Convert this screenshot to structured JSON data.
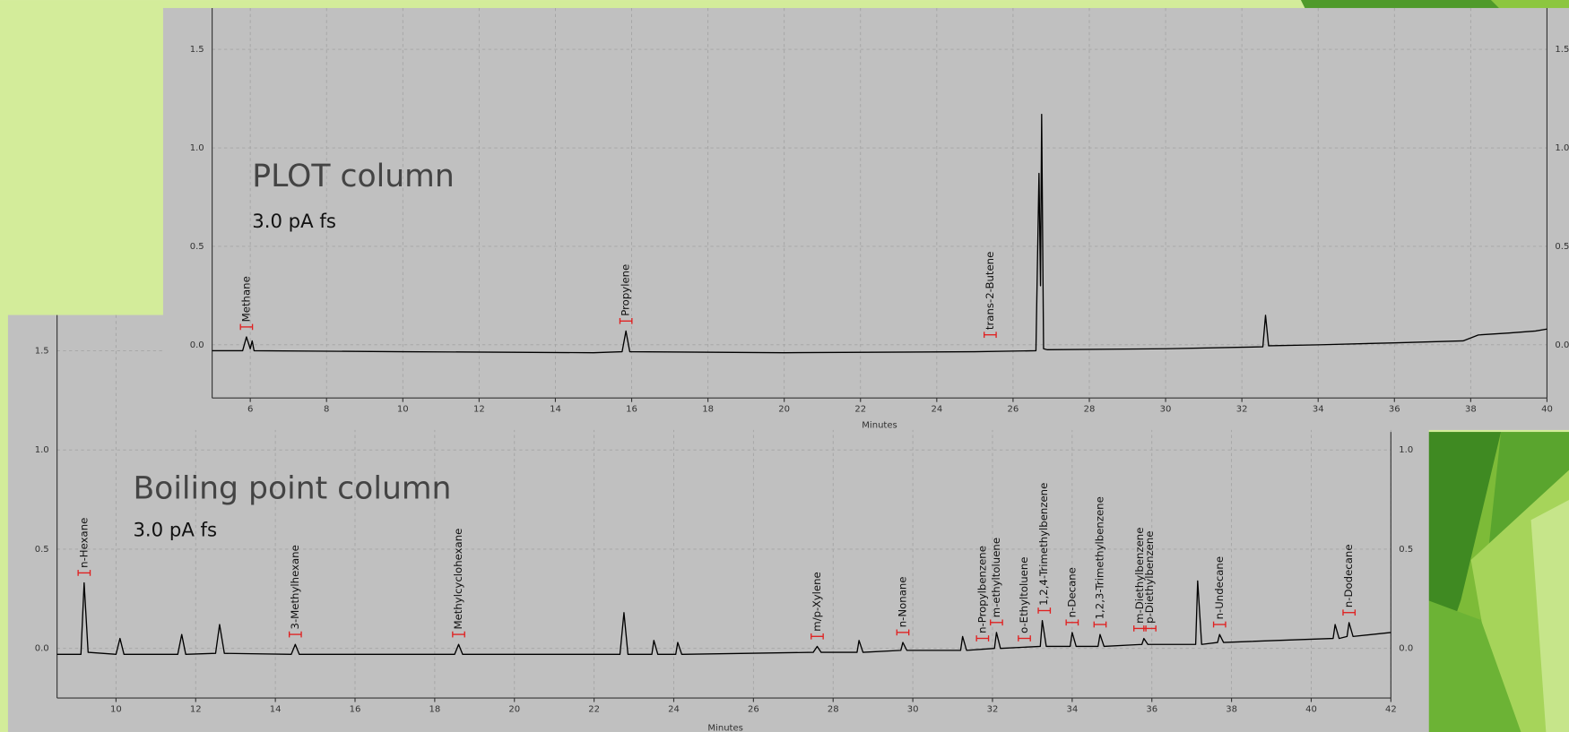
{
  "chart_data": [
    {
      "type": "line",
      "title": "PLOT column",
      "subtitle": "3.0 pA fs",
      "xlabel": "Minutes",
      "xlim": [
        5,
        40
      ],
      "ylim": [
        -0.27,
        1.71
      ],
      "xticks": [
        6,
        8,
        10,
        12,
        14,
        16,
        18,
        20,
        22,
        24,
        26,
        28,
        30,
        32,
        34,
        36,
        38,
        40
      ],
      "yticks": [
        {
          "value": 0,
          "label": "0.0"
        },
        0.5,
        {
          "value": 1,
          "label": "1.0"
        },
        1.5
      ],
      "grid": true,
      "color": "#000000",
      "x": [
        5,
        5.8,
        5.9,
        6.0,
        6.05,
        6.1,
        10,
        15,
        15.75,
        15.85,
        15.95,
        20,
        25,
        26.6,
        26.68,
        26.72,
        26.75,
        26.8,
        26.9,
        30,
        32.55,
        32.62,
        32.7,
        34,
        36,
        37.8,
        38.2,
        39,
        39.7,
        40
      ],
      "values": [
        -0.03,
        -0.03,
        0.04,
        -0.02,
        0.02,
        -0.03,
        -0.035,
        -0.04,
        -0.035,
        0.07,
        -0.035,
        -0.04,
        -0.035,
        -0.03,
        0.87,
        0.3,
        1.17,
        -0.02,
        -0.025,
        -0.02,
        -0.01,
        0.15,
        -0.005,
        0.0,
        0.01,
        0.02,
        0.05,
        0.06,
        0.07,
        0.08
      ],
      "annotations": [
        {
          "text": "Methane",
          "x": 5.9
        },
        {
          "text": "Propylene",
          "x": 15.85
        },
        {
          "text": "trans-2-Butene",
          "x": 25.4
        }
      ]
    },
    {
      "type": "line",
      "title": "Boiling point column",
      "subtitle": "3.0 pA fs",
      "xlabel": "Minutes",
      "xlim": [
        8.52,
        42
      ],
      "ylim": [
        -0.25,
        1.68
      ],
      "xticks": [
        10,
        12,
        14,
        16,
        18,
        20,
        22,
        24,
        26,
        28,
        30,
        32,
        34,
        36,
        38,
        40,
        42
      ],
      "yticks": [
        {
          "value": 0,
          "label": "0.0"
        },
        0.5,
        {
          "value": 1,
          "label": "1.0"
        },
        1.5
      ],
      "grid": true,
      "color": "#000000",
      "x": [
        8.52,
        9.12,
        9.2,
        9.3,
        10.0,
        10.1,
        10.2,
        11.55,
        11.65,
        11.75,
        12.5,
        12.6,
        12.72,
        14.4,
        14.5,
        14.6,
        18.5,
        18.6,
        18.7,
        22.65,
        22.75,
        22.85,
        23.45,
        23.5,
        23.6,
        24.05,
        24.1,
        24.2,
        27.5,
        27.6,
        27.7,
        28.6,
        28.65,
        28.75,
        29.7,
        29.75,
        29.85,
        31.2,
        31.25,
        31.35,
        32.05,
        32.1,
        32.2,
        33.2,
        33.25,
        33.35,
        33.95,
        34.0,
        34.1,
        34.65,
        34.7,
        34.8,
        35.75,
        35.8,
        35.9,
        37.1,
        37.15,
        37.25,
        37.65,
        37.7,
        37.8,
        40.55,
        40.6,
        40.7,
        40.9,
        40.95,
        41.05,
        42
      ],
      "values": [
        -0.03,
        -0.03,
        0.33,
        -0.02,
        -0.03,
        0.05,
        -0.03,
        -0.03,
        0.07,
        -0.03,
        -0.025,
        0.12,
        -0.025,
        -0.03,
        0.02,
        -0.03,
        -0.03,
        0.02,
        -0.03,
        -0.03,
        0.18,
        -0.03,
        -0.03,
        0.04,
        -0.03,
        -0.03,
        0.03,
        -0.03,
        -0.02,
        0.01,
        -0.02,
        -0.02,
        0.04,
        -0.02,
        -0.01,
        0.03,
        -0.01,
        -0.01,
        0.06,
        -0.01,
        0.0,
        0.08,
        0.0,
        0.01,
        0.14,
        0.01,
        0.01,
        0.08,
        0.01,
        0.01,
        0.07,
        0.01,
        0.02,
        0.05,
        0.02,
        0.02,
        0.34,
        0.02,
        0.03,
        0.07,
        0.03,
        0.05,
        0.12,
        0.05,
        0.06,
        0.13,
        0.06,
        0.08
      ],
      "annotations": [
        {
          "text": "n-Hexane",
          "x": 9.2
        },
        {
          "text": "3-Methylhexane",
          "x": 14.5
        },
        {
          "text": "Methylcyclohexane",
          "x": 18.6
        },
        {
          "text": "m/p-Xylene",
          "x": 27.6
        },
        {
          "text": "n-Nonane",
          "x": 29.75
        },
        {
          "text": "n-Propylbenzene",
          "x": 31.75
        },
        {
          "text": "m-ethyltoluene",
          "x": 32.1
        },
        {
          "text": "o-Ethyltoluene",
          "x": 32.8
        },
        {
          "text": "1,2,4-Trimethylbenzene",
          "x": 33.3
        },
        {
          "text": "n-Decane",
          "x": 34.0
        },
        {
          "text": "1,2,3-Trimethylbenzene",
          "x": 34.7
        },
        {
          "text": "m-Diethylbenzene",
          "x": 35.7
        },
        {
          "text": "p-Diethylbenzene",
          "x": 35.95
        },
        {
          "text": "n-Undecane",
          "x": 37.7
        },
        {
          "text": "n-Dodecane",
          "x": 40.95
        }
      ]
    }
  ]
}
